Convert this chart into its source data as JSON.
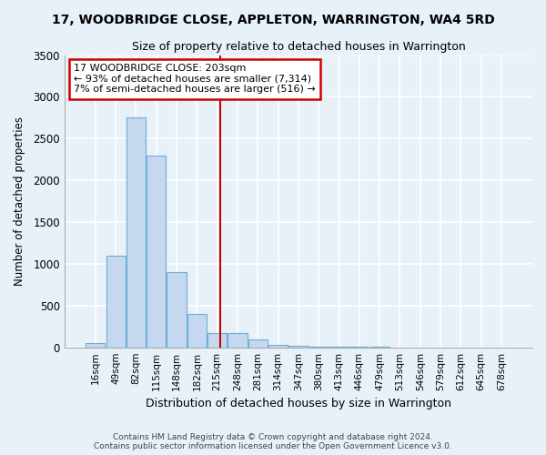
{
  "title": "17, WOODBRIDGE CLOSE, APPLETON, WARRINGTON, WA4 5RD",
  "subtitle": "Size of property relative to detached houses in Warrington",
  "xlabel": "Distribution of detached houses by size in Warrington",
  "ylabel": "Number of detached properties",
  "categories": [
    "16sqm",
    "49sqm",
    "82sqm",
    "115sqm",
    "148sqm",
    "182sqm",
    "215sqm",
    "248sqm",
    "281sqm",
    "314sqm",
    "347sqm",
    "380sqm",
    "413sqm",
    "446sqm",
    "479sqm",
    "513sqm",
    "546sqm",
    "579sqm",
    "612sqm",
    "645sqm",
    "678sqm"
  ],
  "values": [
    50,
    1100,
    2750,
    2300,
    900,
    400,
    175,
    175,
    90,
    30,
    15,
    10,
    5,
    3,
    2,
    1,
    1,
    0,
    0,
    0,
    0
  ],
  "bar_color": "#c5d8f0",
  "bar_edge_color": "#6baed6",
  "annotation_line1": "17 WOODBRIDGE CLOSE: 203sqm",
  "annotation_line2": "← 93% of detached houses are smaller (7,314)",
  "annotation_line3": "7% of semi-detached houses are larger (516) →",
  "annotation_box_facecolor": "#ffffff",
  "annotation_box_edgecolor": "#cc0000",
  "vline_color": "#cc0000",
  "ylim": [
    0,
    3500
  ],
  "yticks": [
    0,
    500,
    1000,
    1500,
    2000,
    2500,
    3000,
    3500
  ],
  "footer_line1": "Contains HM Land Registry data © Crown copyright and database right 2024.",
  "footer_line2": "Contains public sector information licensed under the Open Government Licence v3.0.",
  "bg_color": "#e8f0f8",
  "grid_color": "#ffffff",
  "bar_width": 0.95,
  "vline_x_index": 6.5
}
